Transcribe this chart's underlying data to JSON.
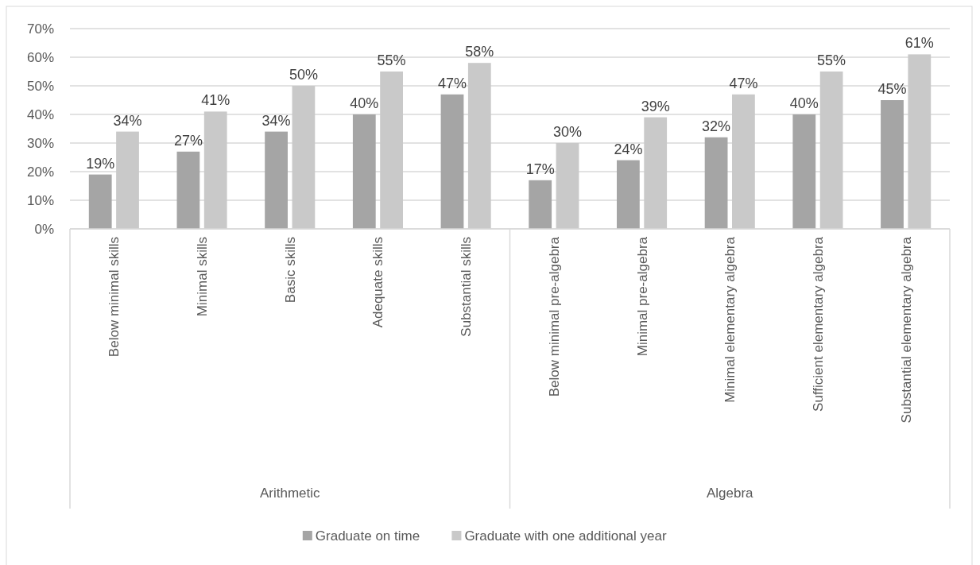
{
  "chart_data": {
    "type": "bar",
    "categories": [
      "Below minimal skills",
      "Minimal skills",
      "Basic skills",
      "Adequate skills",
      "Substantial skills",
      "Below minimal pre-algebra",
      "Minimal pre-algebra",
      "Minimal elementary algebra",
      "Sufficient elementary algebra",
      "Substantial elementary algebra"
    ],
    "series": [
      {
        "name": "Graduate on time",
        "color": "#a5a5a5",
        "values": [
          19,
          27,
          34,
          40,
          47,
          17,
          24,
          32,
          40,
          45
        ],
        "value_labels": [
          "19%",
          "27%",
          "34%",
          "40%",
          "47%",
          "17%",
          "24%",
          "32%",
          "40%",
          "45%"
        ]
      },
      {
        "name": "Graduate with one additional year",
        "color": "#c9c9c9",
        "values": [
          34,
          41,
          50,
          55,
          58,
          30,
          39,
          47,
          55,
          61
        ],
        "value_labels": [
          "34%",
          "41%",
          "50%",
          "55%",
          "58%",
          "30%",
          "39%",
          "47%",
          "55%",
          "61%"
        ]
      }
    ],
    "ylim": [
      0,
      70
    ],
    "yticks": [
      {
        "value": 0,
        "label": "0%"
      },
      {
        "value": 10,
        "label": "10%"
      },
      {
        "value": 20,
        "label": "20%"
      },
      {
        "value": 30,
        "label": "30%"
      },
      {
        "value": 40,
        "label": "40%"
      },
      {
        "value": 50,
        "label": "50%"
      },
      {
        "value": 60,
        "label": "60%"
      },
      {
        "value": 70,
        "label": "70%"
      }
    ],
    "grid": "y",
    "legend": "bottom",
    "annotations": [
      "Arithmetic",
      "Algebra"
    ]
  }
}
